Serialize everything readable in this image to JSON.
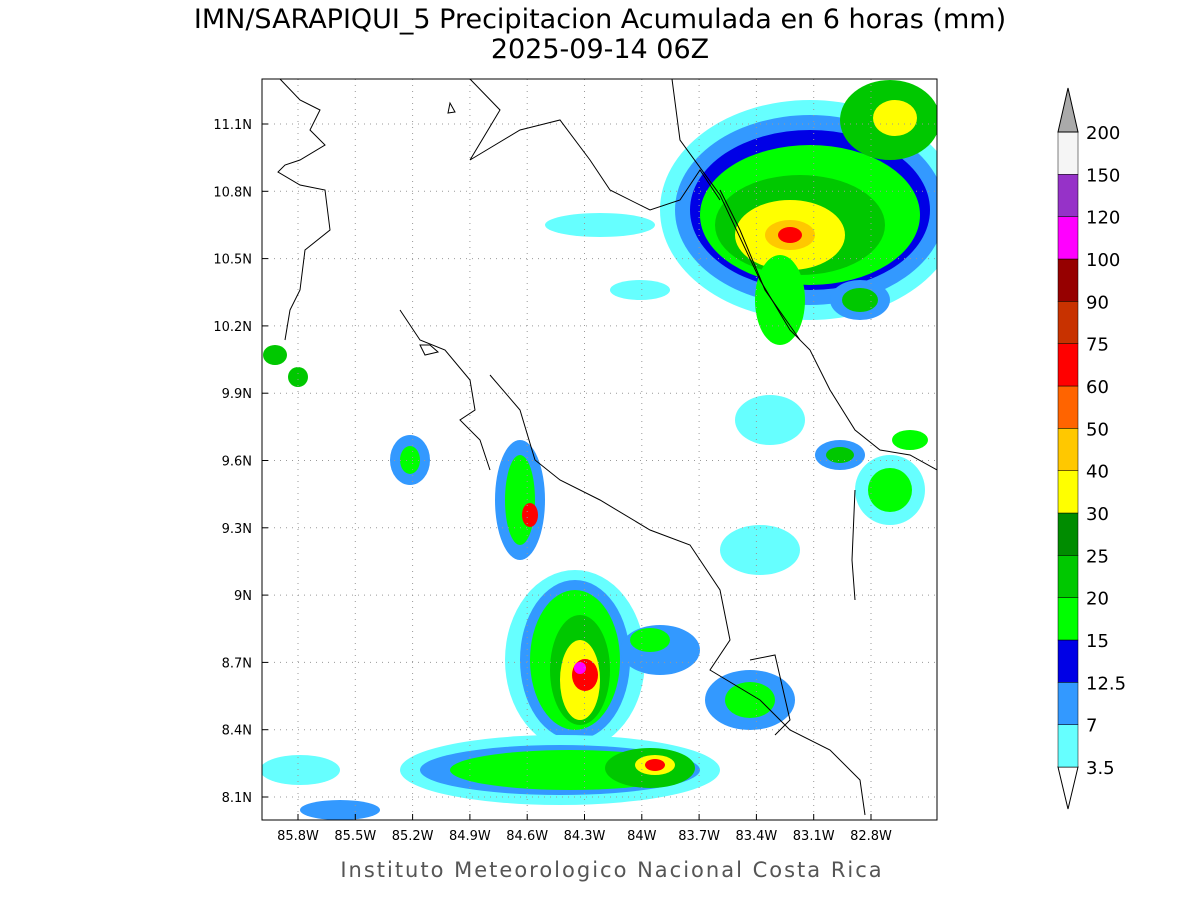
{
  "title": "IMN/SARAPIQUI_5 Precipitacion Acumulada en 6 horas (mm)",
  "subtitle": "2025-09-14 06Z",
  "lon_labels": [
    "85.8W",
    "85.5W",
    "85.2W",
    "84.9W",
    "84.6W",
    "84.3W",
    "84W",
    "83.7W",
    "83.4W",
    "83.1W",
    "82.8W"
  ],
  "lat_labels": [
    "11.1N",
    "10.8N",
    "10.5N",
    "10.2N",
    "9.9N",
    "9.6N",
    "9.3N",
    "9N",
    "8.7N",
    "8.4N",
    "8.1N"
  ],
  "colorbar": {
    "levels": [
      "3.5",
      "7",
      "12.5",
      "15",
      "20",
      "25",
      "30",
      "40",
      "50",
      "60",
      "75",
      "90",
      "100",
      "120",
      "150",
      "200"
    ],
    "colors": [
      "#ffffff",
      "#66ffff",
      "#3399ff",
      "#0000e6",
      "#00ff00",
      "#00c800",
      "#008c00",
      "#ffff00",
      "#ffc800",
      "#ff6400",
      "#ff0000",
      "#c83200",
      "#960000",
      "#ff00ff",
      "#9632c8",
      "#f5f5f5",
      "#aaaaaa"
    ]
  },
  "footer": "Instituto Meteorologico Nacional Costa Rica"
}
